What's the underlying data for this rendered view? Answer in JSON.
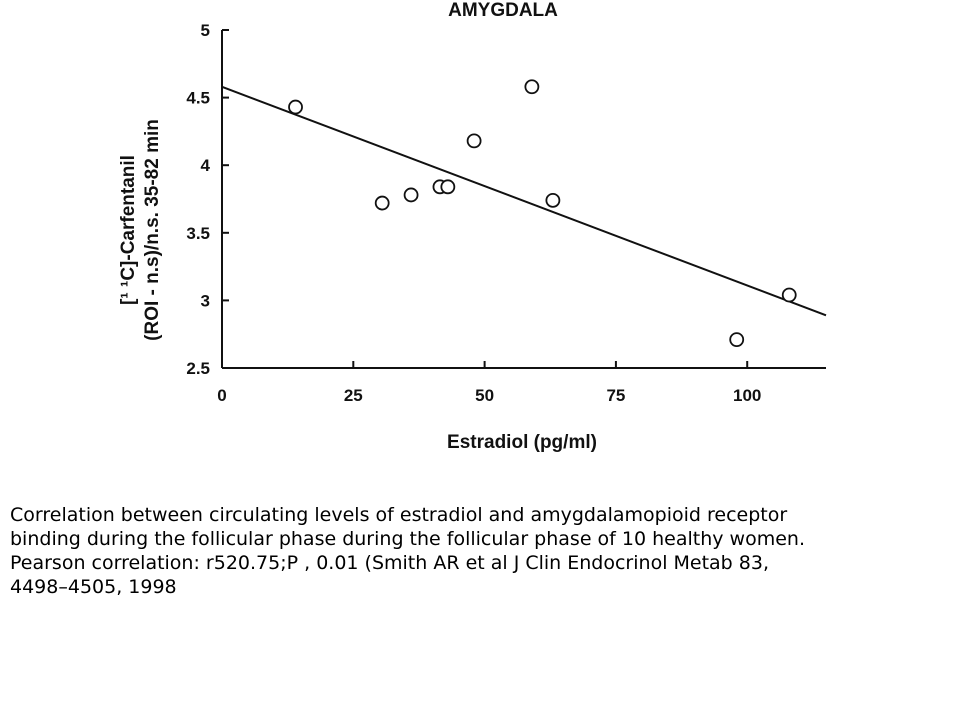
{
  "chart_data": {
    "type": "scatter",
    "title": "AMYGDALA",
    "xlabel": "Estradiol   (pg/ml)",
    "ylabel_lines": [
      "[¹ ¹C]-Carfentanil",
      "(ROI  -  n.s)/n.s.  35-82  min"
    ],
    "xlim": [
      0,
      115
    ],
    "ylim": [
      2.5,
      5
    ],
    "xticks": [
      "0",
      "25",
      "50",
      "75",
      "100"
    ],
    "xtick_values": [
      0,
      25,
      50,
      75,
      100
    ],
    "yticks": [
      "2.5",
      "3",
      "3.5",
      "4",
      "4.5",
      "5"
    ],
    "ytick_values": [
      2.5,
      3,
      3.5,
      4,
      4.5,
      5
    ],
    "points": [
      {
        "x": 14,
        "y": 4.43
      },
      {
        "x": 30.5,
        "y": 3.72
      },
      {
        "x": 36,
        "y": 3.78
      },
      {
        "x": 41.5,
        "y": 3.84
      },
      {
        "x": 43,
        "y": 3.84
      },
      {
        "x": 48,
        "y": 4.18
      },
      {
        "x": 59,
        "y": 4.58
      },
      {
        "x": 63,
        "y": 3.74
      },
      {
        "x": 98,
        "y": 2.71
      },
      {
        "x": 108,
        "y": 3.04
      }
    ],
    "regression_line": {
      "x": [
        0,
        115
      ],
      "y": [
        4.58,
        2.89
      ]
    },
    "grid": false,
    "legend": "none"
  },
  "caption": {
    "lines": [
      "Correlation between circulating levels of estradiol and amygdalamopioid receptor",
      "binding during the follicular phase during the follicular phase of 10 healthy women.",
      "Pearson correlation: r520.75;P , 0.01 (Smith AR et al J Clin Endocrinol Metab 83,",
      "4498–4505, 1998"
    ]
  }
}
